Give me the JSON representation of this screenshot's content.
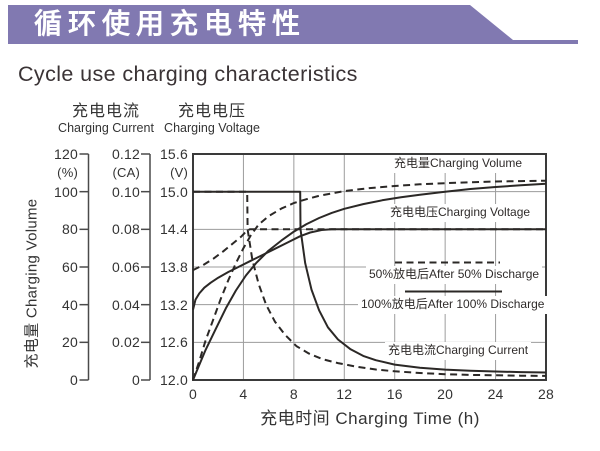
{
  "banner": {
    "title": "循环使用充电特性"
  },
  "subtitle": "Cycle use charging characteristics",
  "colors": {
    "accent": "#8179b1",
    "line": "#2b2826",
    "grid": "#9c9c9c",
    "border": "#3a3a3a",
    "text": "#3a3335"
  },
  "axis_headers": {
    "current": {
      "cn": "充电电流",
      "en": "Charging Current"
    },
    "voltage": {
      "cn": "充电电压",
      "en": "Charging Voltage"
    }
  },
  "ylabel_rotated": "充电量 Charging Volume",
  "y_axes": [
    {
      "id": "percent",
      "unit_label": "(%)",
      "ticks": [
        "120",
        "100",
        "80",
        "60",
        "40",
        "20",
        "0"
      ],
      "range": [
        0,
        120
      ]
    },
    {
      "id": "ca",
      "unit_label": "(CA)",
      "ticks": [
        "0.12",
        "0.10",
        "0.08",
        "0.06",
        "0.04",
        "0.02",
        "0"
      ],
      "range": [
        0,
        0.12
      ]
    },
    {
      "id": "v",
      "unit_label": "(V)",
      "ticks": [
        "15.6",
        "15.0",
        "14.4",
        "13.8",
        "13.2",
        "12.6",
        "12.0"
      ],
      "range": [
        12,
        15.6
      ]
    }
  ],
  "x_axis": {
    "ticks": [
      "0",
      "4",
      "8",
      "12",
      "16",
      "20",
      "24",
      "28"
    ],
    "title": "充电时间 Charging Time (h)",
    "range": [
      0,
      28
    ]
  },
  "curve_labels": {
    "volume": "充电量Charging Volume",
    "voltage": "充电电压Charging Voltage",
    "current": "充电电流Charging Current"
  },
  "legend": [
    {
      "style": "dashed",
      "label": "50%放电后After 50% Discharge"
    },
    {
      "style": "solid",
      "label": "100%放电后After 100% Discharge"
    }
  ],
  "chart_data": {
    "type": "line",
    "title": "Cycle use charging characteristics",
    "xlabel": "充电时间 Charging Time (h)",
    "x_range": [
      0,
      28
    ],
    "grid": true,
    "y_axes": {
      "charging_volume_percent": [
        0,
        120
      ],
      "charging_current_ca": [
        0,
        0.12
      ],
      "charging_voltage_v": [
        12,
        15.6
      ]
    },
    "series": [
      {
        "name": "Charging Current after 50% discharge",
        "unit": "CA",
        "style": "dashed",
        "points": [
          [
            0,
            0.1
          ],
          [
            4.3,
            0.1
          ],
          [
            4.33,
            0.08
          ],
          [
            4.7,
            0.064
          ],
          [
            5.2,
            0.051
          ],
          [
            5.8,
            0.04
          ],
          [
            6.5,
            0.031
          ],
          [
            7.3,
            0.024
          ],
          [
            8.2,
            0.018
          ],
          [
            9.2,
            0.014
          ],
          [
            10.3,
            0.011
          ],
          [
            11.5,
            0.009
          ],
          [
            13,
            0.007
          ],
          [
            14.5,
            0.0056
          ],
          [
            16,
            0.0046
          ],
          [
            18,
            0.0037
          ],
          [
            20,
            0.0031
          ],
          [
            22,
            0.0027
          ],
          [
            24,
            0.0025
          ],
          [
            26,
            0.0023
          ],
          [
            28,
            0.0022
          ]
        ]
      },
      {
        "name": "Charging Current after 100% discharge",
        "unit": "CA",
        "style": "solid",
        "points": [
          [
            0,
            0.1
          ],
          [
            8.5,
            0.1
          ],
          [
            8.53,
            0.08
          ],
          [
            8.9,
            0.062
          ],
          [
            9.4,
            0.048
          ],
          [
            10,
            0.037
          ],
          [
            10.7,
            0.028
          ],
          [
            11.5,
            0.0215
          ],
          [
            12.5,
            0.0163
          ],
          [
            13.5,
            0.0128
          ],
          [
            14.5,
            0.0105
          ],
          [
            16,
            0.0082
          ],
          [
            18,
            0.0065
          ],
          [
            20,
            0.0055
          ],
          [
            22,
            0.0049
          ],
          [
            24,
            0.0045
          ],
          [
            26,
            0.0042
          ],
          [
            28,
            0.004
          ]
        ]
      },
      {
        "name": "Charging Voltage after 50% discharge",
        "unit": "V",
        "style": "dashed",
        "points": [
          [
            0,
            13.75
          ],
          [
            0.8,
            13.83
          ],
          [
            1.6,
            13.93
          ],
          [
            2.4,
            14.05
          ],
          [
            3.2,
            14.18
          ],
          [
            3.8,
            14.28
          ],
          [
            4.2,
            14.36
          ],
          [
            4.5,
            14.4
          ],
          [
            28,
            14.4
          ]
        ]
      },
      {
        "name": "Charging Voltage after 100% discharge",
        "unit": "V",
        "style": "solid",
        "points": [
          [
            0,
            13.12
          ],
          [
            0.2,
            13.28
          ],
          [
            0.5,
            13.38
          ],
          [
            0.9,
            13.47
          ],
          [
            1.4,
            13.55
          ],
          [
            2,
            13.63
          ],
          [
            2.8,
            13.72
          ],
          [
            3.6,
            13.8
          ],
          [
            4.5,
            13.89
          ],
          [
            5.5,
            13.99
          ],
          [
            6.5,
            14.09
          ],
          [
            7.5,
            14.19
          ],
          [
            8.5,
            14.29
          ],
          [
            9.3,
            14.35
          ],
          [
            10.2,
            14.39
          ],
          [
            11,
            14.4
          ],
          [
            28,
            14.4
          ]
        ]
      },
      {
        "name": "Charging Volume after 50% discharge",
        "unit": "%",
        "style": "dashed",
        "points": [
          [
            0,
            0
          ],
          [
            0.5,
            10
          ],
          [
            1,
            21
          ],
          [
            1.6,
            32
          ],
          [
            2.2,
            43
          ],
          [
            2.8,
            53
          ],
          [
            3.4,
            62
          ],
          [
            4,
            70
          ],
          [
            4.6,
            77
          ],
          [
            5.2,
            82.5
          ],
          [
            6,
            87
          ],
          [
            7,
            91
          ],
          [
            8,
            94
          ],
          [
            9,
            96
          ],
          [
            10,
            97.8
          ],
          [
            12,
            100.3
          ],
          [
            14,
            101.9
          ],
          [
            16,
            103
          ],
          [
            18,
            103.9
          ],
          [
            20,
            104.5
          ],
          [
            22,
            105
          ],
          [
            24,
            105.4
          ],
          [
            26,
            105.6
          ],
          [
            28,
            105.8
          ]
        ]
      },
      {
        "name": "Charging Volume after 100% discharge",
        "unit": "%",
        "style": "solid",
        "points": [
          [
            0,
            0
          ],
          [
            0.5,
            8
          ],
          [
            1,
            16
          ],
          [
            1.8,
            27
          ],
          [
            2.6,
            38
          ],
          [
            3.4,
            47.5
          ],
          [
            4.2,
            55.5
          ],
          [
            5,
            62
          ],
          [
            6,
            68.7
          ],
          [
            7,
            74
          ],
          [
            8,
            78.8
          ],
          [
            9,
            82.8
          ],
          [
            10,
            86
          ],
          [
            11,
            88.7
          ],
          [
            12,
            90.9
          ],
          [
            13.5,
            93.4
          ],
          [
            15,
            95.4
          ],
          [
            16.5,
            97
          ],
          [
            18,
            98.4
          ],
          [
            20,
            100
          ],
          [
            22,
            101.4
          ],
          [
            24,
            102.5
          ],
          [
            26,
            103.4
          ],
          [
            28,
            104.2
          ]
        ]
      }
    ]
  }
}
